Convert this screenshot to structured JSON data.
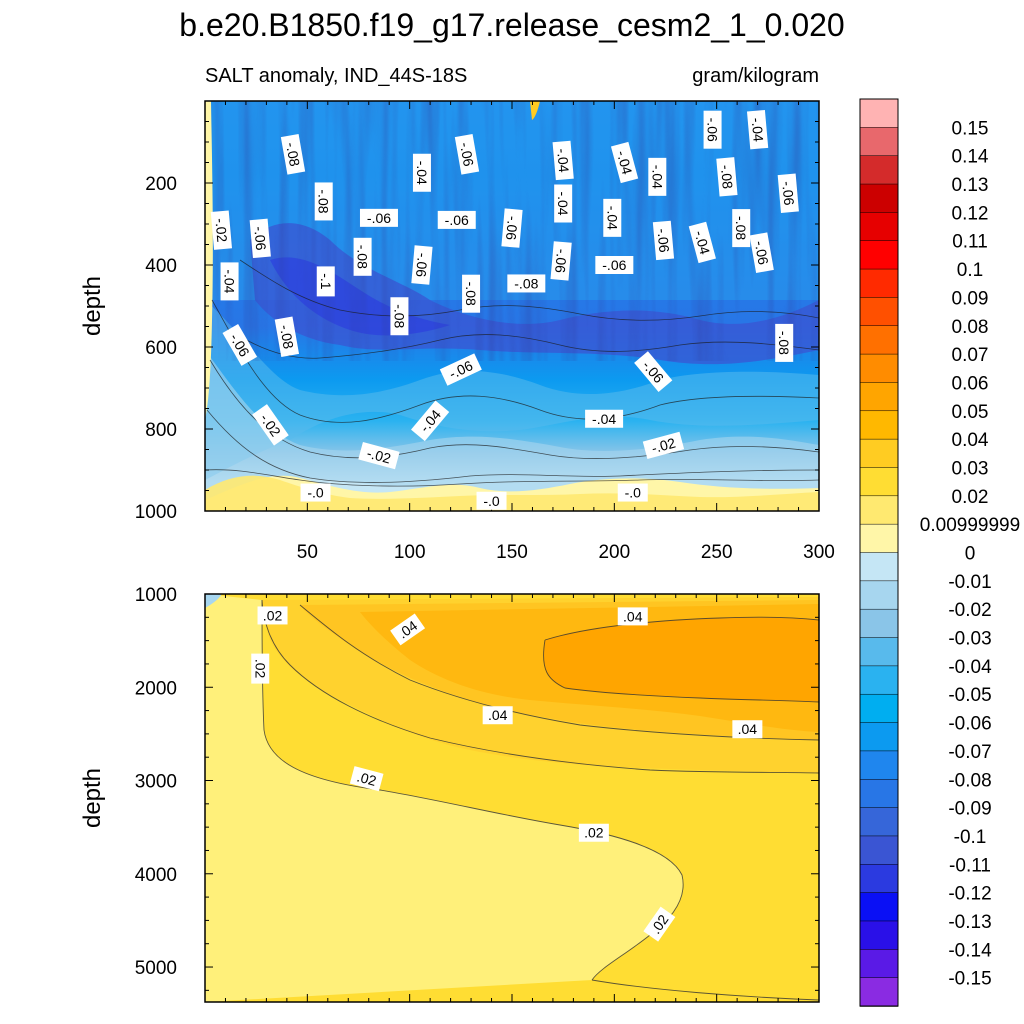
{
  "chart_data": [
    {
      "type": "heatmap",
      "title": "b.e20.B1850.f19_g17.release_cesm2_1_0.020",
      "left_string": "SALT anomaly, IND_44S-18S",
      "right_string": "gram/kilogram",
      "xlabel": "",
      "ylabel": "depth",
      "xlim": [
        0,
        300
      ],
      "ylim": [
        0,
        1000
      ],
      "y_reversed": true,
      "xticks": [
        50,
        100,
        150,
        200,
        250,
        300
      ],
      "xtick_labels": [
        "50",
        "100",
        "150",
        "200",
        "250",
        "300"
      ],
      "yticks": [
        200,
        400,
        600,
        800,
        1000
      ],
      "ytick_labels": [
        "200",
        "400",
        "600",
        "800",
        "1000"
      ],
      "contour_labels": [
        {
          "text": "-.08",
          "x": 43,
          "y": 130,
          "rot": 80
        },
        {
          "text": "-.04",
          "x": 106,
          "y": 175,
          "rot": 90
        },
        {
          "text": "-.06",
          "x": 128,
          "y": 130,
          "rot": 80
        },
        {
          "text": "-.04",
          "x": 175,
          "y": 145,
          "rot": 85
        },
        {
          "text": "-.04",
          "x": 205,
          "y": 150,
          "rot": 75
        },
        {
          "text": "-.04",
          "x": 221,
          "y": 185,
          "rot": 90
        },
        {
          "text": "-.06",
          "x": 248,
          "y": 70,
          "rot": 90
        },
        {
          "text": "-.04",
          "x": 270,
          "y": 70,
          "rot": 85
        },
        {
          "text": "-.08",
          "x": 255,
          "y": 185,
          "rot": 85
        },
        {
          "text": "-.06",
          "x": 285,
          "y": 225,
          "rot": 85
        },
        {
          "text": "-.08",
          "x": 58,
          "y": 245,
          "rot": 90
        },
        {
          "text": "-.06",
          "x": 85,
          "y": 285,
          "rot": 0
        },
        {
          "text": "-.06",
          "x": 123,
          "y": 290,
          "rot": 0
        },
        {
          "text": "-.06",
          "x": 150,
          "y": 310,
          "rot": 95
        },
        {
          "text": "-.04",
          "x": 175,
          "y": 250,
          "rot": 90
        },
        {
          "text": "-.04",
          "x": 199,
          "y": 285,
          "rot": 90
        },
        {
          "text": "-.08",
          "x": 262,
          "y": 310,
          "rot": 90
        },
        {
          "text": "-.02",
          "x": 8,
          "y": 315,
          "rot": 85
        },
        {
          "text": "-.06",
          "x": 27,
          "y": 335,
          "rot": 85
        },
        {
          "text": "-.06",
          "x": 224,
          "y": 340,
          "rot": 85
        },
        {
          "text": "-.04",
          "x": 243,
          "y": 345,
          "rot": 75
        },
        {
          "text": "-.06",
          "x": 272,
          "y": 370,
          "rot": 80
        },
        {
          "text": "-.08",
          "x": 77,
          "y": 380,
          "rot": 90
        },
        {
          "text": "-.06",
          "x": 106,
          "y": 400,
          "rot": 95
        },
        {
          "text": "-.06",
          "x": 174,
          "y": 390,
          "rot": 95
        },
        {
          "text": "-.06",
          "x": 200,
          "y": 400,
          "rot": 0
        },
        {
          "text": "-.04",
          "x": 12,
          "y": 440,
          "rot": 90
        },
        {
          "text": "-.1",
          "x": 59,
          "y": 440,
          "rot": 90
        },
        {
          "text": "-.08",
          "x": 130,
          "y": 470,
          "rot": 90
        },
        {
          "text": "-.08",
          "x": 157,
          "y": 445,
          "rot": 0
        },
        {
          "text": "-.08",
          "x": 95,
          "y": 525,
          "rot": 90
        },
        {
          "text": "-.08",
          "x": 283,
          "y": 590,
          "rot": 90
        },
        {
          "text": "-.06",
          "x": 17,
          "y": 595,
          "rot": 60
        },
        {
          "text": "-.08",
          "x": 40,
          "y": 575,
          "rot": 80
        },
        {
          "text": "-.06",
          "x": 125,
          "y": 655,
          "rot": -25
        },
        {
          "text": "-.06",
          "x": 219,
          "y": 660,
          "rot": 50
        },
        {
          "text": "-.04",
          "x": 110,
          "y": 780,
          "rot": -50
        },
        {
          "text": "-.04",
          "x": 195,
          "y": 775,
          "rot": 0
        },
        {
          "text": "-.02",
          "x": 32,
          "y": 790,
          "rot": 55
        },
        {
          "text": "-.02",
          "x": 224,
          "y": 840,
          "rot": -15
        },
        {
          "text": "-.02",
          "x": 85,
          "y": 865,
          "rot": 15
        },
        {
          "text": "-.0",
          "x": 54,
          "y": 955,
          "rot": 0
        },
        {
          "text": "-.0",
          "x": 140,
          "y": 975,
          "rot": 0
        },
        {
          "text": "-.0",
          "x": 209,
          "y": 955,
          "rot": 0
        }
      ]
    },
    {
      "type": "heatmap",
      "title": "",
      "xlabel": "",
      "ylabel": "depth",
      "xlim": [
        0,
        300
      ],
      "ylim": [
        1000,
        5375
      ],
      "y_reversed": true,
      "yticks": [
        1000,
        2000,
        3000,
        4000,
        5000
      ],
      "ytick_labels": [
        "1000",
        "2000",
        "3000",
        "4000",
        "5000"
      ],
      "contour_labels": [
        {
          "text": ".02",
          "x": 33,
          "y": 1230,
          "rot": 0
        },
        {
          "text": ".02",
          "x": 27,
          "y": 1800,
          "rot": 90
        },
        {
          "text": ".04",
          "x": 99,
          "y": 1380,
          "rot": -35
        },
        {
          "text": ".04",
          "x": 209,
          "y": 1240,
          "rot": 0
        },
        {
          "text": ".04",
          "x": 143,
          "y": 2300,
          "rot": 0
        },
        {
          "text": ".04",
          "x": 265,
          "y": 2450,
          "rot": 0
        },
        {
          "text": ".02",
          "x": 79,
          "y": 2980,
          "rot": 15
        },
        {
          "text": ".02",
          "x": 190,
          "y": 3560,
          "rot": 0
        },
        {
          "text": ".02",
          "x": 222,
          "y": 4540,
          "rot": -55
        }
      ]
    },
    {
      "type": "colorbar",
      "labels": [
        "0.15",
        "0.14",
        "0.13",
        "0.12",
        "0.11",
        "0.1",
        "0.09",
        "0.08",
        "0.07",
        "0.06",
        "0.05",
        "0.04",
        "0.03",
        "0.02",
        "0.00999999",
        "0",
        "-0.01",
        "-0.02",
        "-0.03",
        "-0.04",
        "-0.05",
        "-0.06",
        "-0.07",
        "-0.08",
        "-0.09",
        "-0.1",
        "-0.11",
        "-0.12",
        "-0.13",
        "-0.14",
        "-0.15"
      ],
      "colors": [
        "#ffb3b3",
        "#e8686c",
        "#d42b2b",
        "#cc0000",
        "#e60000",
        "#ff0000",
        "#ff2a00",
        "#ff5000",
        "#ff7000",
        "#ff8c00",
        "#ffa500",
        "#ffb800",
        "#ffcc22",
        "#ffdd33",
        "#ffe970",
        "#fff6a8",
        "#c5e6f5",
        "#a7d6ef",
        "#8ac5e8",
        "#58baec",
        "#2ab2f0",
        "#00aef0",
        "#0c9af0",
        "#1f86ee",
        "#2876e6",
        "#3666d9",
        "#3a55d3",
        "#2b3ae0",
        "#0a10f5",
        "#2a10e8",
        "#5a1ae6",
        "#8a2be2"
      ]
    }
  ]
}
